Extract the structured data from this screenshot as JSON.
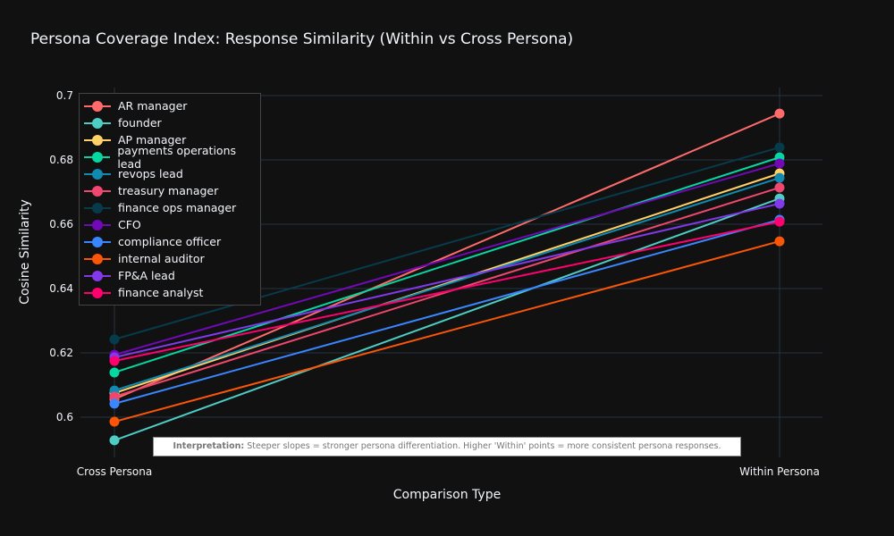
{
  "chart_data": {
    "type": "line",
    "title": "Persona Coverage Index: Response Similarity (Within vs Cross Persona)",
    "xlabel": "Comparison Type",
    "ylabel": "Cosine Similarity",
    "categories": [
      "Cross Persona",
      "Within Persona"
    ],
    "ylim": [
      0.5875,
      0.7025
    ],
    "yticks": [
      0.6,
      0.62,
      0.64,
      0.66,
      0.68,
      0.7
    ],
    "ytick_labels": [
      "0.6",
      "0.62",
      "0.64",
      "0.66",
      "0.68",
      "0.7"
    ],
    "grid": true,
    "legend_position": "top-left",
    "series": [
      {
        "name": "AR manager",
        "color": "#FF6B6B",
        "values": [
          0.6056,
          0.6944
        ]
      },
      {
        "name": "founder",
        "color": "#4ECDC4",
        "values": [
          0.5928,
          0.668
        ]
      },
      {
        "name": "AP manager",
        "color": "#FFD166",
        "values": [
          0.6075,
          0.6758
        ]
      },
      {
        "name": "payments operations lead",
        "color": "#06D6A0",
        "values": [
          0.6139,
          0.6808
        ]
      },
      {
        "name": "revops lead",
        "color": "#118AB2",
        "values": [
          0.6083,
          0.6744
        ]
      },
      {
        "name": "treasury manager",
        "color": "#EF476F",
        "values": [
          0.6064,
          0.6714
        ]
      },
      {
        "name": "finance ops manager",
        "color": "#073B4C",
        "values": [
          0.6242,
          0.6839
        ]
      },
      {
        "name": "CFO",
        "color": "#7209B7",
        "values": [
          0.6194,
          0.6789
        ]
      },
      {
        "name": "compliance officer",
        "color": "#3A86FF",
        "values": [
          0.6042,
          0.6614
        ]
      },
      {
        "name": "internal auditor",
        "color": "#FB5607",
        "values": [
          0.5986,
          0.6547
        ]
      },
      {
        "name": "FP&A lead",
        "color": "#8338EC",
        "values": [
          0.6186,
          0.6664
        ]
      },
      {
        "name": "finance analyst",
        "color": "#FF006E",
        "values": [
          0.6175,
          0.6608
        ]
      }
    ],
    "annotation": {
      "bold": "Interpretation:",
      "text": " Steeper slopes = stronger persona differentiation. Higher 'Within' points = more consistent persona responses."
    }
  }
}
